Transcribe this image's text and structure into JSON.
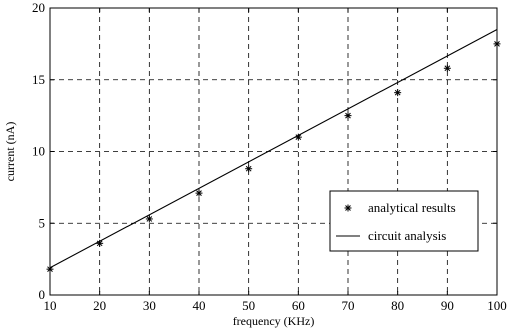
{
  "chart_data": {
    "type": "line",
    "xlabel": "frequency (KHz)",
    "ylabel": "current (nA)",
    "xlim": [
      10,
      100
    ],
    "ylim": [
      0,
      20
    ],
    "xticks": [
      "10",
      "20",
      "30",
      "40",
      "50",
      "60",
      "70",
      "80",
      "90",
      "100"
    ],
    "yticks": [
      "0",
      "5",
      "10",
      "15",
      "20"
    ],
    "grid": true,
    "legend_position": "bottom-right",
    "series": [
      {
        "name": "analytical results",
        "style": "markers",
        "marker": "asterisk",
        "x": [
          10,
          20,
          30,
          40,
          50,
          60,
          70,
          80,
          90,
          100
        ],
        "y": [
          1.8,
          3.6,
          5.3,
          7.1,
          8.8,
          11.0,
          12.5,
          14.1,
          15.8,
          17.5
        ]
      },
      {
        "name": "circuit analysis",
        "style": "line",
        "x": [
          10,
          100
        ],
        "y": [
          1.9,
          18.5
        ]
      }
    ]
  }
}
